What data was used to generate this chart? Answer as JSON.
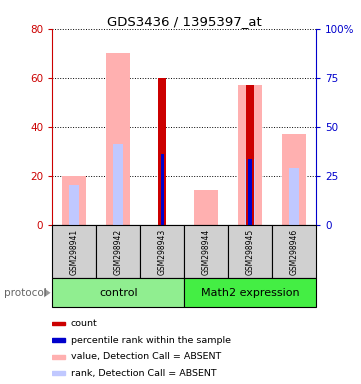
{
  "title": "GDS3436 / 1395397_at",
  "samples": [
    "GSM298941",
    "GSM298942",
    "GSM298943",
    "GSM298944",
    "GSM298945",
    "GSM298946"
  ],
  "ylim_left": [
    0,
    80
  ],
  "ylim_right": [
    0,
    100
  ],
  "yticks_left": [
    0,
    20,
    40,
    60,
    80
  ],
  "yticks_right": [
    0,
    25,
    50,
    75,
    100
  ],
  "yticklabels_right": [
    "0",
    "25",
    "50",
    "75",
    "100%"
  ],
  "absent_value_bars": [
    20,
    70,
    0,
    14,
    57,
    37
  ],
  "absent_rank_bars": [
    16,
    33,
    0,
    0,
    27,
    23
  ],
  "count_bars": [
    0,
    0,
    60,
    0,
    57,
    0
  ],
  "rank_bars": [
    0,
    0,
    29,
    0,
    27,
    0
  ],
  "absent_value_color": "#ffb0b0",
  "absent_rank_color": "#c0c8ff",
  "count_color": "#cc0000",
  "rank_color": "#0000cc",
  "sample_box_color": "#d0d0d0",
  "control_color": "#90ee90",
  "math2_color": "#44ee44",
  "legend_items": [
    {
      "color": "#cc0000",
      "label": "count"
    },
    {
      "color": "#0000cc",
      "label": "percentile rank within the sample"
    },
    {
      "color": "#ffb0b0",
      "label": "value, Detection Call = ABSENT"
    },
    {
      "color": "#c0c8ff",
      "label": "rank, Detection Call = ABSENT"
    }
  ],
  "protocol_label": "protocol",
  "bg_color": "#ffffff",
  "tick_color_left": "#cc0000",
  "tick_color_right": "#0000cc",
  "arrow_color": "#999999",
  "protocol_text_color": "#666666"
}
